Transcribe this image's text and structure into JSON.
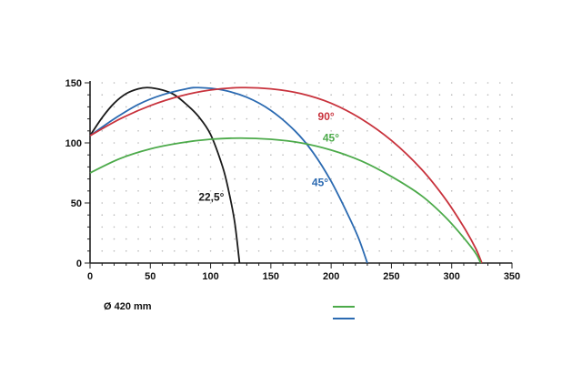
{
  "chart_data": {
    "type": "line",
    "xlim": [
      0,
      350
    ],
    "ylim": [
      0,
      150
    ],
    "x_ticks": [
      "0",
      "50",
      "100",
      "150",
      "200",
      "250",
      "300",
      "350"
    ],
    "y_ticks": [
      "0",
      "50",
      "100",
      "150"
    ],
    "grid": "dotted",
    "series": [
      {
        "name": "22,5°",
        "color": "#1a1a1a",
        "points": [
          [
            0,
            106
          ],
          [
            10,
            121
          ],
          [
            20,
            133
          ],
          [
            30,
            141
          ],
          [
            40,
            145
          ],
          [
            48,
            146
          ],
          [
            60,
            144
          ],
          [
            70,
            140
          ],
          [
            80,
            132
          ],
          [
            90,
            122
          ],
          [
            100,
            107
          ],
          [
            110,
            80
          ],
          [
            115,
            60
          ],
          [
            120,
            34
          ],
          [
            124,
            0
          ]
        ]
      },
      {
        "name": "45°",
        "color": "#2b6ab1",
        "points": [
          [
            0,
            106
          ],
          [
            20,
            120
          ],
          [
            40,
            132
          ],
          [
            60,
            140
          ],
          [
            80,
            145
          ],
          [
            90,
            146
          ],
          [
            110,
            144
          ],
          [
            130,
            138
          ],
          [
            150,
            127
          ],
          [
            170,
            110
          ],
          [
            185,
            92
          ],
          [
            200,
            68
          ],
          [
            215,
            38
          ],
          [
            223,
            20
          ],
          [
            230,
            0
          ]
        ]
      },
      {
        "name": "90°",
        "color": "#c8323c",
        "points": [
          [
            0,
            106
          ],
          [
            25,
            120
          ],
          [
            50,
            131
          ],
          [
            75,
            139
          ],
          [
            100,
            144
          ],
          [
            125,
            146
          ],
          [
            150,
            145
          ],
          [
            175,
            141
          ],
          [
            200,
            133
          ],
          [
            225,
            120
          ],
          [
            250,
            102
          ],
          [
            275,
            78
          ],
          [
            295,
            53
          ],
          [
            310,
            30
          ],
          [
            320,
            12
          ],
          [
            325,
            0
          ]
        ]
      },
      {
        "name": "45°",
        "color": "#4caa4a",
        "points": [
          [
            0,
            75
          ],
          [
            25,
            87
          ],
          [
            50,
            95
          ],
          [
            75,
            100
          ],
          [
            100,
            103
          ],
          [
            125,
            104
          ],
          [
            150,
            103
          ],
          [
            175,
            100
          ],
          [
            200,
            94
          ],
          [
            225,
            85
          ],
          [
            250,
            72
          ],
          [
            275,
            56
          ],
          [
            295,
            38
          ],
          [
            310,
            21
          ],
          [
            320,
            8
          ],
          [
            324,
            0
          ]
        ]
      }
    ],
    "annotations": [
      {
        "text": "22,5°",
        "color": "#1a1a1a",
        "x": 90,
        "y": 52
      },
      {
        "text": "45°",
        "color": "#2b6ab1",
        "x": 184,
        "y": 64
      },
      {
        "text": "90°",
        "color": "#c8323c",
        "x": 189,
        "y": 119
      },
      {
        "text": "45°",
        "color": "#4caa4a",
        "x": 193,
        "y": 101
      }
    ]
  },
  "diameter_label": "Ø 420 mm",
  "legend_swatches": [
    {
      "color": "#4caa4a"
    },
    {
      "color": "#2b6ab1"
    }
  ]
}
